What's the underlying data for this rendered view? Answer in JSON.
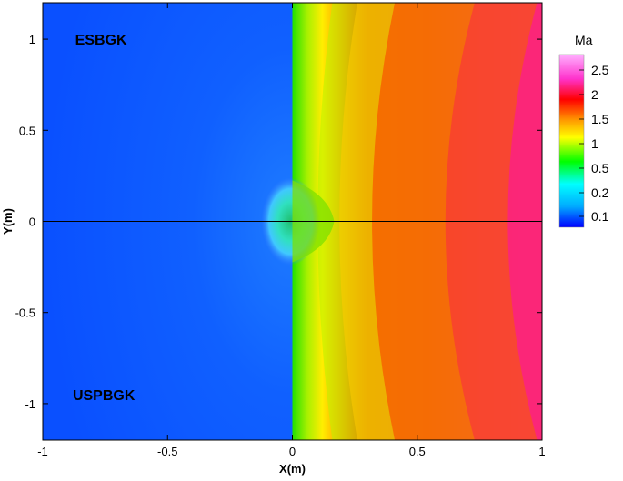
{
  "chart_data": {
    "type": "heatmap",
    "title": "",
    "xlabel": "X(m)",
    "ylabel": "Y(m)",
    "xlim": [
      -1,
      1
    ],
    "ylim": [
      -1.2,
      1.2
    ],
    "x_ticks": [
      -1,
      -0.5,
      0,
      0.5,
      1
    ],
    "x_tick_labels": [
      "-1",
      "-0.5",
      "0",
      "0.5",
      "1"
    ],
    "y_ticks": [
      -1,
      -0.5,
      0,
      0.5,
      1
    ],
    "y_tick_labels": [
      "-1",
      "-0.5",
      "0",
      "0.5",
      "1"
    ],
    "grid": false,
    "annotations": [
      {
        "text": "ESBGK",
        "x": -0.87,
        "y": 0.97
      },
      {
        "text": "USPBGK",
        "x": -0.88,
        "y": -0.98
      }
    ],
    "divider": {
      "y": 0
    },
    "colorbar": {
      "title": "Ma",
      "position": "right",
      "labels": [
        "2.5",
        "2",
        "1.5",
        "1",
        "0.5",
        "0.2",
        "0.1"
      ],
      "colors": [
        "#ff99ff",
        "#ff33cc",
        "#ff0000",
        "#ff9900",
        "#ffff00",
        "#00ff00",
        "#00ffff",
        "#00aaff",
        "#0000ff"
      ]
    },
    "field": {
      "variable": "Mach number",
      "upstream_mach": 0.1,
      "shock_position_x": 0,
      "max_mach": 2.5,
      "colors": {
        "upstream": "#0a55ff",
        "sonic": "#00ff00",
        "mach_1_5": "#ff9900",
        "mach_2": "#ff0000",
        "mach_2_5": "#ff00ff"
      }
    }
  }
}
